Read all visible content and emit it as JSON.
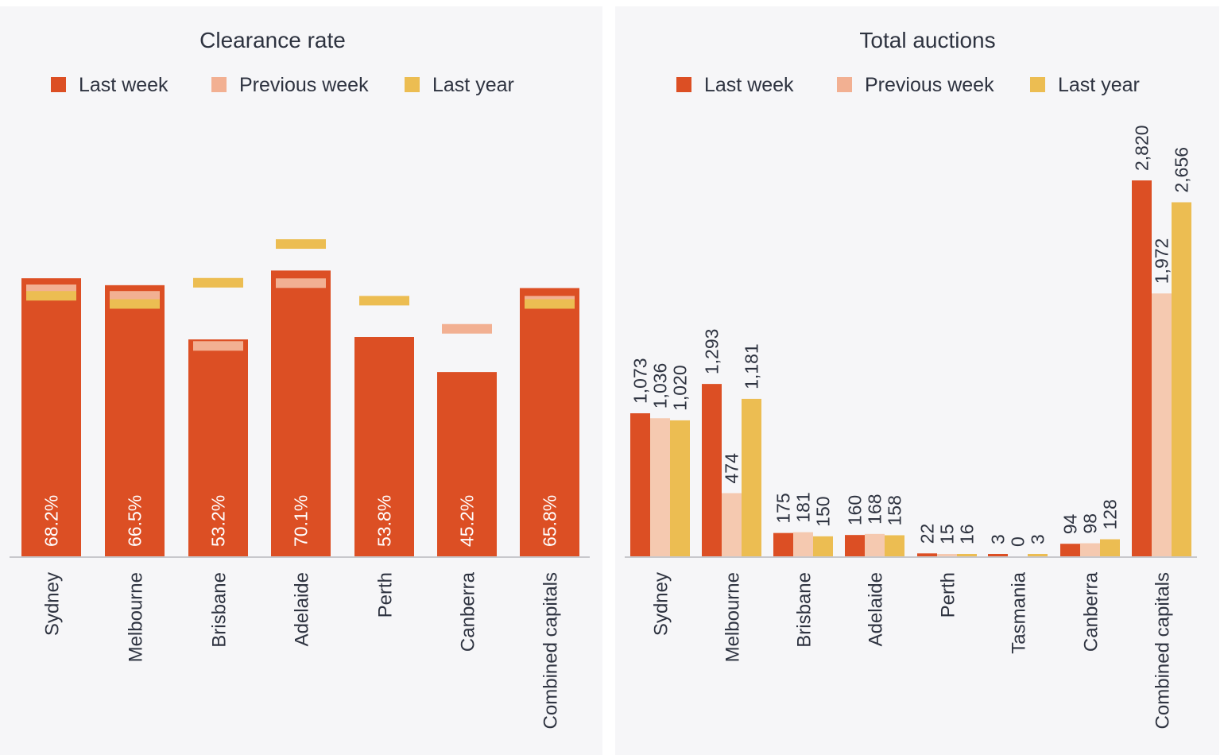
{
  "colors": {
    "last_week": "#dc4f24",
    "previous_week": "#f2b092",
    "last_year": "#ecbd52",
    "previous_week_bar": "#f5c9b0",
    "axis": "#c8c8cc",
    "text": "#2e3340"
  },
  "chart_data": [
    {
      "type": "bar",
      "title": "Clearance rate",
      "legend": [
        "Last week",
        "Previous week",
        "Last year"
      ],
      "legend_position": "top",
      "categories": [
        "Sydney",
        "Melbourne",
        "Brisbane",
        "Adelaide",
        "Perth",
        "Canberra",
        "Combined capitals"
      ],
      "series": [
        {
          "name": "Last week",
          "values": [
            68.2,
            66.5,
            53.2,
            70.1,
            53.8,
            45.2,
            65.8
          ],
          "labels": [
            "68.2%",
            "66.5%",
            "53.2%",
            "70.1%",
            "53.8%",
            "45.2%",
            "65.8%"
          ],
          "style": "bar"
        },
        {
          "name": "Previous week",
          "values": [
            65.5,
            63.9,
            51.6,
            67.0,
            null,
            55.8,
            62.7
          ],
          "style": "marker"
        },
        {
          "name": "Last year",
          "values": [
            63.9,
            61.9,
            67.1,
            76.6,
            62.7,
            null,
            61.9
          ],
          "style": "marker"
        }
      ],
      "ylim": [
        0,
        100
      ],
      "grid": false
    },
    {
      "type": "bar",
      "title": "Total auctions",
      "legend": [
        "Last week",
        "Previous week",
        "Last year"
      ],
      "legend_position": "top",
      "categories": [
        "Sydney",
        "Melbourne",
        "Brisbane",
        "Adelaide",
        "Perth",
        "Tasmania",
        "Canberra",
        "Combined capitals"
      ],
      "series": [
        {
          "name": "Last week",
          "values": [
            1073,
            1293,
            175,
            160,
            22,
            3,
            94,
            2820
          ],
          "labels": [
            "1,073",
            "1,293",
            "175",
            "160",
            "22",
            "3",
            "94",
            "2,820"
          ]
        },
        {
          "name": "Previous week",
          "values": [
            1036,
            474,
            181,
            168,
            15,
            0,
            98,
            1972
          ],
          "labels": [
            "1,036",
            "474",
            "181",
            "168",
            "15",
            "0",
            "98",
            "1,972"
          ]
        },
        {
          "name": "Last year",
          "values": [
            1020,
            1181,
            150,
            158,
            16,
            3,
            128,
            2656
          ],
          "labels": [
            "1,020",
            "1,181",
            "150",
            "158",
            "16",
            "3",
            "128",
            "2,656"
          ]
        }
      ],
      "ylim": [
        0,
        3300
      ],
      "grid": false
    }
  ]
}
